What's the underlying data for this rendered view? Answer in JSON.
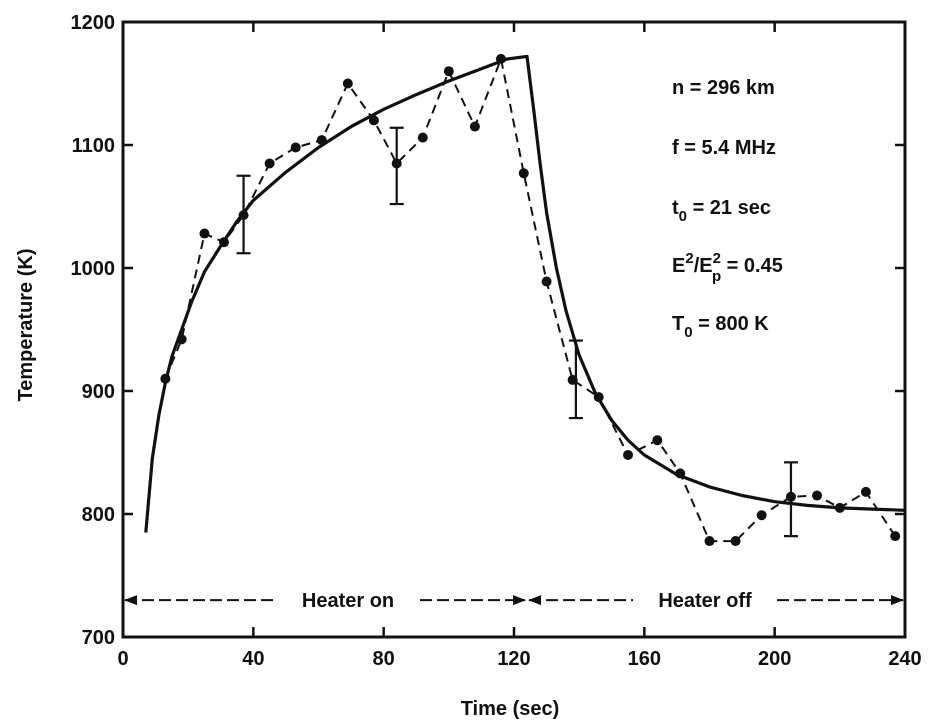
{
  "chart_data": {
    "type": "line",
    "title": "",
    "xlabel": "Time (sec)",
    "ylabel": "Temperature (K)",
    "xlim": [
      0,
      240
    ],
    "ylim": [
      700,
      1200
    ],
    "xticks": [
      0,
      40,
      80,
      120,
      160,
      200,
      240
    ],
    "yticks": [
      700,
      800,
      900,
      1000,
      1100,
      1200
    ],
    "grid": false,
    "legend": "none",
    "annotations": {
      "params": [
        {
          "text": "n = 296 km"
        },
        {
          "text": "f = 5.4 MHz"
        },
        {
          "base": "t",
          "sub": "0",
          "rest": " = 21 sec"
        },
        {
          "special": "E2Ep2",
          "rest": " = 0.45"
        },
        {
          "base": "T",
          "sub": "0",
          "rest": " = 800 K"
        }
      ],
      "heater_on": "Heater on",
      "heater_off": "Heater off",
      "heater_on_range": [
        0,
        124
      ],
      "heater_off_range": [
        124,
        240
      ],
      "arrow_y": 730
    },
    "series": [
      {
        "style": "dashed-markers",
        "x": [
          13,
          18,
          25,
          31,
          37,
          45,
          53,
          61,
          69,
          77,
          84,
          92,
          100,
          108,
          116,
          123,
          130,
          138,
          146,
          155,
          164,
          171,
          180,
          188,
          196,
          205,
          213,
          220,
          228,
          237
        ],
        "y": [
          910,
          942,
          1028,
          1021,
          1043,
          1085,
          1098,
          1104,
          1150,
          1120,
          1085,
          1106,
          1160,
          1115,
          1170,
          1077,
          989,
          909,
          895,
          848,
          860,
          833,
          778,
          778,
          799,
          814,
          815,
          805,
          818,
          782
        ]
      },
      {
        "style": "solid",
        "x": [
          7,
          9,
          11,
          13,
          15,
          18,
          21,
          25,
          30,
          35,
          40,
          50,
          60,
          70,
          80,
          90,
          100,
          110,
          118,
          124,
          126,
          128,
          130,
          133,
          136,
          140,
          145,
          150,
          155,
          160,
          170,
          180,
          190,
          200,
          210,
          220,
          230,
          240
        ],
        "y": [
          785,
          845,
          880,
          907,
          928,
          950,
          972,
          997,
          1018,
          1038,
          1055,
          1078,
          1098,
          1115,
          1129,
          1141,
          1152,
          1162,
          1170,
          1172,
          1130,
          1085,
          1045,
          1000,
          965,
          929,
          898,
          876,
          860,
          848,
          832,
          822,
          815,
          810,
          807,
          805,
          804,
          803
        ]
      }
    ],
    "error_bars": [
      {
        "x": 37,
        "low": 1012,
        "high": 1075
      },
      {
        "x": 84,
        "low": 1052,
        "high": 1114
      },
      {
        "x": 139,
        "low": 878,
        "high": 941
      },
      {
        "x": 205,
        "low": 782,
        "high": 842
      }
    ]
  }
}
